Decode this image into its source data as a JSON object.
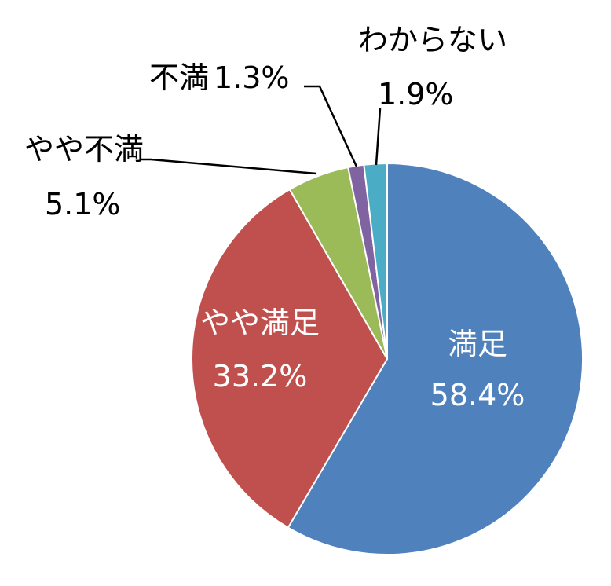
{
  "chart_data": {
    "type": "pie",
    "title": "",
    "start_angle_deg": 0,
    "direction": "clockwise",
    "slices": [
      {
        "name": "満足",
        "value": 58.4,
        "value_label": "58.4%",
        "color": "#4F81BD"
      },
      {
        "name": "やや満足",
        "value": 33.2,
        "value_label": "33.2%",
        "color": "#C0504D"
      },
      {
        "name": "やや不満",
        "value": 5.1,
        "value_label": "5.1%",
        "color": "#9BBB59"
      },
      {
        "name": "不満",
        "value": 1.3,
        "value_label": "1.3%",
        "color": "#8064A2"
      },
      {
        "name": "わからない",
        "value": 1.9,
        "value_label": "1.9%",
        "color": "#4BACC6"
      }
    ]
  }
}
